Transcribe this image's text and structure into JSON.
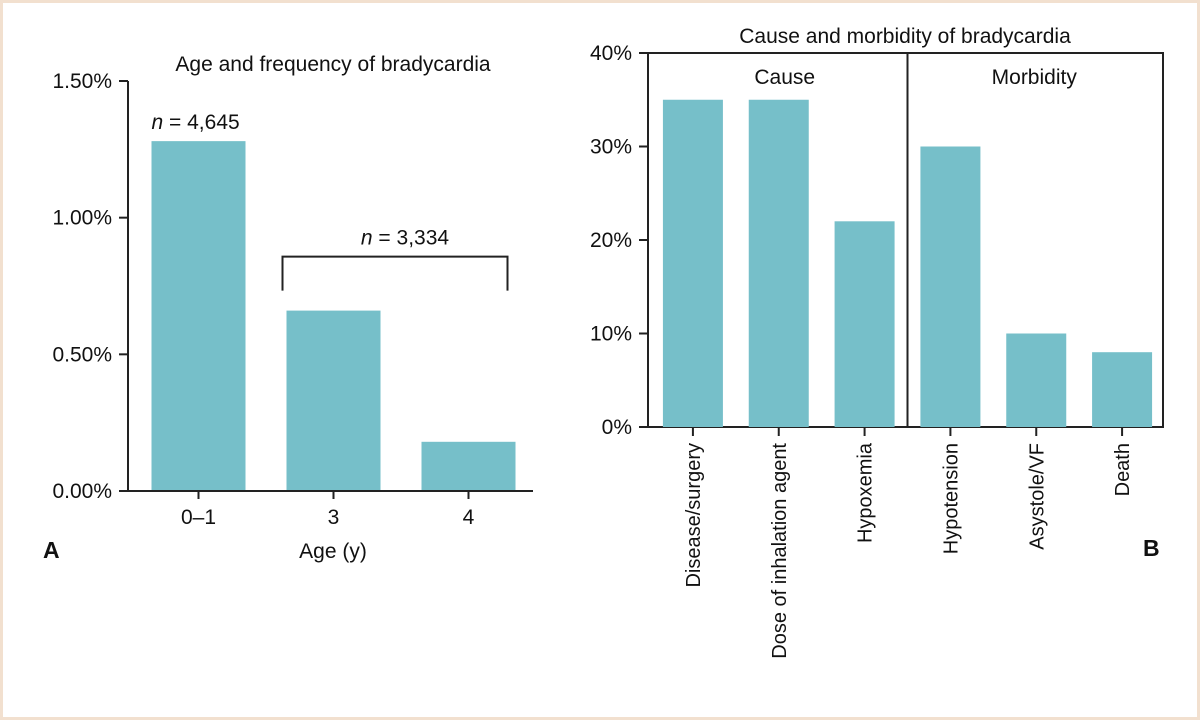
{
  "chart_data": [
    {
      "panel": "A",
      "type": "bar",
      "title": "Age and frequency of bradycardia",
      "xlabel": "Age (y)",
      "ylabel": "",
      "categories": [
        "0–1",
        "3",
        "4"
      ],
      "values": [
        1.28,
        0.66,
        0.18
      ],
      "unit": "%",
      "ylim": [
        0,
        1.5
      ],
      "yticks": [
        "0.00%",
        "0.50%",
        "1.00%",
        "1.50%"
      ],
      "ytick_values": [
        0,
        0.5,
        1.0,
        1.5
      ],
      "annotations": [
        {
          "italic": "n",
          "text": " = 4,645",
          "applies_to": [
            "0–1"
          ]
        },
        {
          "italic": "n",
          "text": " = 3,334",
          "applies_to": [
            "3",
            "4"
          ],
          "bracket": true
        }
      ]
    },
    {
      "panel": "B",
      "type": "bar",
      "title": "Cause and morbidity of bradycardia",
      "xlabel": "",
      "ylabel": "",
      "groups": [
        {
          "label": "Cause",
          "categories": [
            "Disease/surgery",
            "Dose of inhalation agent",
            "Hypoxemia"
          ],
          "values": [
            35,
            35,
            22
          ]
        },
        {
          "label": "Morbidity",
          "categories": [
            "Hypotension",
            "Asystole/VF",
            "Death"
          ],
          "values": [
            30,
            10,
            8
          ]
        }
      ],
      "unit": "%",
      "ylim": [
        0,
        40
      ],
      "yticks": [
        "0%",
        "10%",
        "20%",
        "30%",
        "40%"
      ],
      "ytick_values": [
        0,
        10,
        20,
        30,
        40
      ]
    }
  ]
}
